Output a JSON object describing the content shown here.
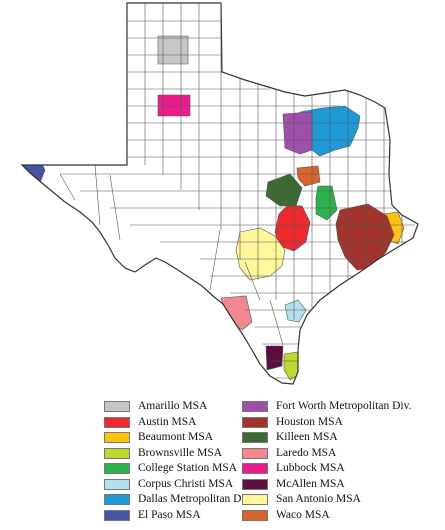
{
  "map": {
    "regions": [
      {
        "key": "amarillo",
        "name": "Amarillo MSA",
        "color": "#c6c6c6"
      },
      {
        "key": "austin",
        "name": "Austin MSA",
        "color": "#ee2a2f"
      },
      {
        "key": "beaumont",
        "name": "Beaumont MSA",
        "color": "#ffc20e"
      },
      {
        "key": "brownsville",
        "name": "Brownsville MSA",
        "color": "#bfd730"
      },
      {
        "key": "college_station",
        "name": "College Station MSA",
        "color": "#2bb24c"
      },
      {
        "key": "corpus_christi",
        "name": "Corpus Christi MSA",
        "color": "#b2e0ec"
      },
      {
        "key": "dallas",
        "name": "Dallas Metropolitan Div.",
        "color": "#1b9ad6"
      },
      {
        "key": "el_paso",
        "name": "El Paso MSA",
        "color": "#4654a3"
      },
      {
        "key": "fort_worth",
        "name": "Fort Worth Metropolitan Div.",
        "color": "#a04fa8"
      },
      {
        "key": "houston",
        "name": "Houston MSA",
        "color": "#a3342c"
      },
      {
        "key": "killeen",
        "name": "Killeen MSA",
        "color": "#3b6a32"
      },
      {
        "key": "laredo",
        "name": "Laredo MSA",
        "color": "#f1888e"
      },
      {
        "key": "lubbock",
        "name": "Lubbock MSA",
        "color": "#ec1c8c"
      },
      {
        "key": "mcallen",
        "name": "McAllen MSA",
        "color": "#5c0f3f"
      },
      {
        "key": "san_antonio",
        "name": "San Antonio MSA",
        "color": "#fff799"
      },
      {
        "key": "waco",
        "name": "Waco MSA",
        "color": "#d9652b"
      }
    ]
  }
}
